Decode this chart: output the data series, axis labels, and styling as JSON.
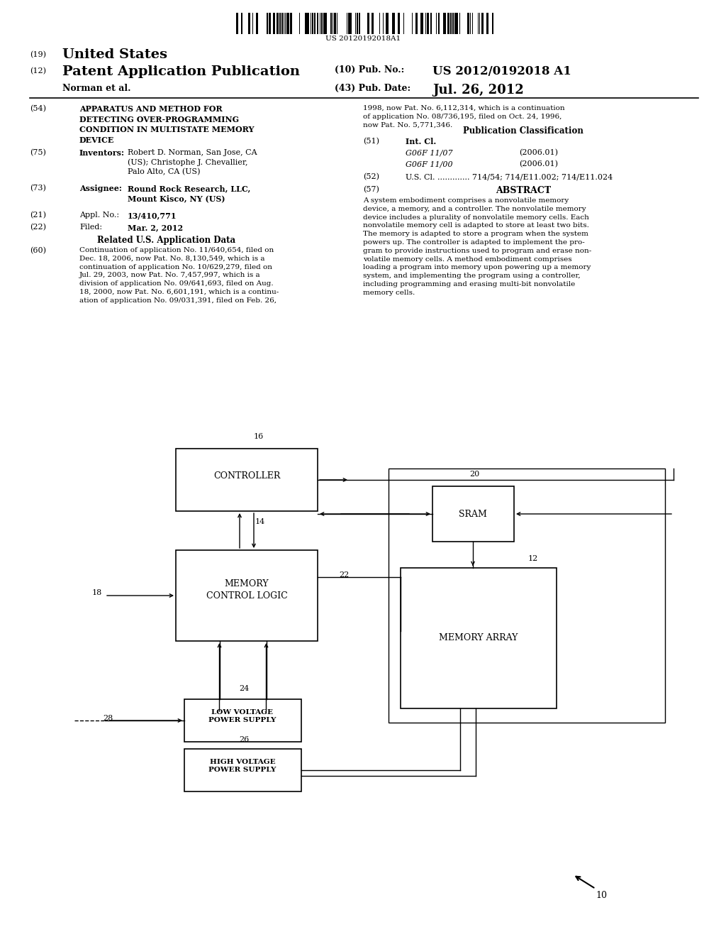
{
  "barcode_text": "US 20120192018A1",
  "header_country": "(19) United States",
  "header_type_num": "(12)",
  "header_type": "Patent Application Publication",
  "pub_no_label": "(10) Pub. No.:",
  "pub_no": "US 2012/0192018 A1",
  "author": "Norman et al.",
  "pub_date_label": "(43) Pub. Date:",
  "pub_date": "Jul. 26, 2012",
  "item54_title": "APPARATUS AND METHOD FOR\nDETECTING OVER-PROGRAMMING\nCONDITION IN MULTISTATE MEMORY\nDEVICE",
  "item75_head": "Inventors:",
  "item75_text": "Robert D. Norman, San Jose, CA\n(US); Christophe J. Chevallier,\nPalo Alto, CA (US)",
  "item73_head": "Assignee:",
  "item73_text": "Round Rock Research, LLC,\nMount Kisco, NY (US)",
  "item21_head": "Appl. No.:",
  "item21_text": "13/410,771",
  "item22_head": "Filed:",
  "item22_text": "Mar. 2, 2012",
  "related_head": "Related U.S. Application Data",
  "item60_text": "Continuation of application No. 11/640,654, filed on\nDec. 18, 2006, now Pat. No. 8,130,549, which is a\ncontinuation of application No. 10/629,279, filed on\nJul. 29, 2003, now Pat. No. 7,457,997, which is a\ndivision of application No. 09/641,693, filed on Aug.\n18, 2000, now Pat. No. 6,601,191, which is a continu-\nation of application No. 09/031,391, filed on Feb. 26,",
  "cont_text": "1998, now Pat. No. 6,112,314, which is a continuation\nof application No. 08/736,195, filed on Oct. 24, 1996,\nnow Pat. No. 5,771,346.",
  "pub_class_head": "Publication Classification",
  "item51_head": "Int. Cl.",
  "item51_class1": "G06F 11/07",
  "item51_year1": "(2006.01)",
  "item51_class2": "G06F 11/00",
  "item51_year2": "(2006.01)",
  "item52_text": "U.S. Cl. ............. 714/54; 714/E11.002; 714/E11.024",
  "item57_head": "ABSTRACT",
  "abstract_text": "A system embodiment comprises a nonvolatile memory\ndevice, a memory, and a controller. The nonvolatile memory\ndevice includes a plurality of nonvolatile memory cells. Each\nnonvolatile memory cell is adapted to store at least two bits.\nThe memory is adapted to store a program when the system\npowers up. The controller is adapted to implement the pro-\ngram to provide instructions used to program and erase non-\nvolatile memory cells. A method embodiment comprises\nloading a program into memory upon powering up a memory\nsystem, and implementing the program using a controller,\nincluding programming and erasing multi-bit nonvolatile\nmemory cells.",
  "bg_color": "#ffffff"
}
